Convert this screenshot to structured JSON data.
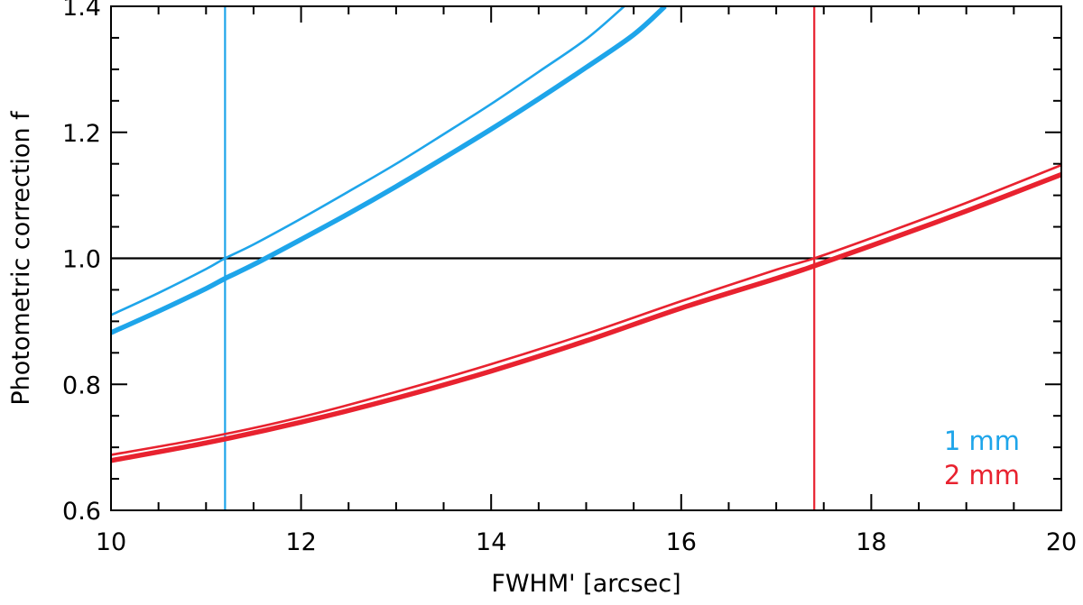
{
  "chart_data": {
    "type": "line",
    "title": "",
    "xlabel": "FWHM' [arcsec]",
    "ylabel": "Photometric correction f",
    "xlim": [
      10,
      20
    ],
    "ylim": [
      0.6,
      1.4
    ],
    "xticks": [
      10,
      12,
      14,
      16,
      18,
      20
    ],
    "yticks": [
      0.6,
      0.8,
      1.0,
      1.2,
      1.4
    ],
    "xtick_labels": [
      "10",
      "12",
      "14",
      "16",
      "18",
      "20"
    ],
    "ytick_labels": [
      "0.6",
      "0.8",
      "1.0",
      "1.2",
      "1.4"
    ],
    "x_minor_step": 0.5,
    "y_minor_step": 0.05,
    "grid": false,
    "legend_position": "bottom-right",
    "legend": [
      {
        "label": "1 mm",
        "color": "#1ea5ea"
      },
      {
        "label": "2 mm",
        "color": "#e8222f"
      }
    ],
    "series": [
      {
        "band": "1mm",
        "color": "#1ea5ea",
        "style": "thin",
        "x": [
          10.0,
          10.5,
          11.0,
          11.2,
          11.5,
          12.0,
          12.5,
          13.0,
          13.5,
          14.0,
          14.5,
          15.0,
          15.4
        ],
        "y": [
          0.91,
          0.945,
          0.983,
          1.0,
          1.022,
          1.063,
          1.106,
          1.15,
          1.197,
          1.245,
          1.296,
          1.348,
          1.4
        ]
      },
      {
        "band": "1mm",
        "color": "#1ea5ea",
        "style": "thick",
        "x": [
          10.0,
          10.5,
          11.0,
          11.2,
          11.5,
          12.0,
          12.5,
          13.0,
          13.5,
          14.0,
          14.5,
          15.0,
          15.5,
          15.83
        ],
        "y": [
          0.882,
          0.916,
          0.952,
          0.968,
          0.99,
          1.03,
          1.071,
          1.114,
          1.159,
          1.205,
          1.253,
          1.303,
          1.355,
          1.4
        ]
      },
      {
        "band": "2mm",
        "color": "#e8222f",
        "style": "thin",
        "x": [
          10,
          11,
          12,
          13,
          14,
          15,
          16,
          17,
          17.4,
          18,
          19,
          20
        ],
        "y": [
          0.688,
          0.715,
          0.748,
          0.788,
          0.832,
          0.88,
          0.932,
          0.982,
          1.0,
          1.032,
          1.088,
          1.148
        ]
      },
      {
        "band": "2mm",
        "color": "#e8222f",
        "style": "thick",
        "x": [
          10,
          11,
          12,
          13,
          14,
          15,
          16,
          17,
          17.4,
          18,
          19,
          20
        ],
        "y": [
          0.679,
          0.707,
          0.74,
          0.778,
          0.821,
          0.869,
          0.921,
          0.968,
          0.988,
          1.02,
          1.075,
          1.133
        ]
      }
    ],
    "reference_lines": [
      {
        "orientation": "horizontal",
        "value": 1.0,
        "color": "#000000"
      },
      {
        "orientation": "vertical",
        "value": 11.2,
        "color": "#1ea5ea"
      },
      {
        "orientation": "vertical",
        "value": 17.4,
        "color": "#e8222f"
      }
    ]
  }
}
